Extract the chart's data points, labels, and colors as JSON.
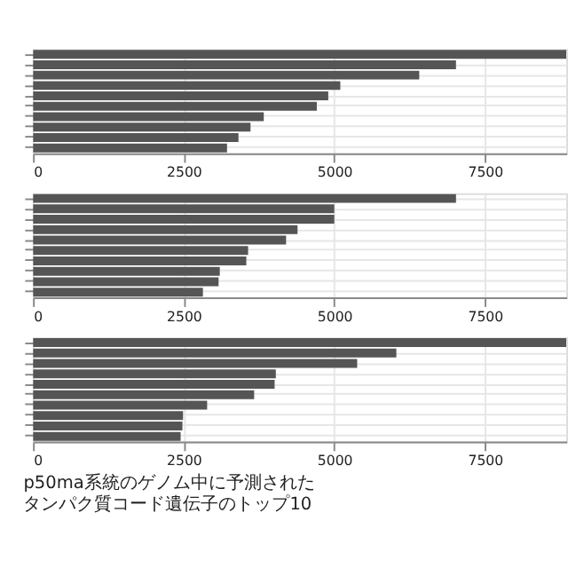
{
  "chart_data": [
    {
      "type": "bar",
      "orientation": "horizontal",
      "categories": [
        null,
        null,
        null,
        null,
        null,
        null,
        null,
        null,
        null,
        null
      ],
      "values": [
        8850,
        7020,
        6410,
        5100,
        4900,
        4710,
        3830,
        3610,
        3410,
        3220
      ],
      "color": "#555555",
      "xlim": [
        0,
        8850
      ],
      "xticks": [
        0,
        2500,
        5000,
        7500
      ],
      "grid": true,
      "tick_labels": "x"
    },
    {
      "type": "bar",
      "orientation": "horizontal",
      "categories": [
        null,
        null,
        null,
        null,
        null,
        null,
        null,
        null,
        null,
        null
      ],
      "values": [
        7020,
        5000,
        5000,
        4390,
        4200,
        3570,
        3540,
        3100,
        3080,
        2820
      ],
      "color": "#555555",
      "xlim": [
        0,
        8850
      ],
      "xticks": [
        0,
        2500,
        5000,
        7500
      ],
      "grid": true,
      "tick_labels": "x"
    },
    {
      "type": "bar",
      "orientation": "horizontal",
      "categories": [
        null,
        null,
        null,
        null,
        null,
        null,
        null,
        null,
        null,
        null
      ],
      "values": [
        8850,
        6030,
        5380,
        4030,
        4010,
        3670,
        2890,
        2490,
        2480,
        2450
      ],
      "color": "#555555",
      "xlim": [
        0,
        8850
      ],
      "xticks": [
        0,
        2500,
        5000,
        7500
      ],
      "grid": true,
      "tick_labels": "x",
      "annotations": [
        "p50ma系統のゲノム中に予測されたタンパク質コード遺伝子のトップ10"
      ]
    }
  ]
}
